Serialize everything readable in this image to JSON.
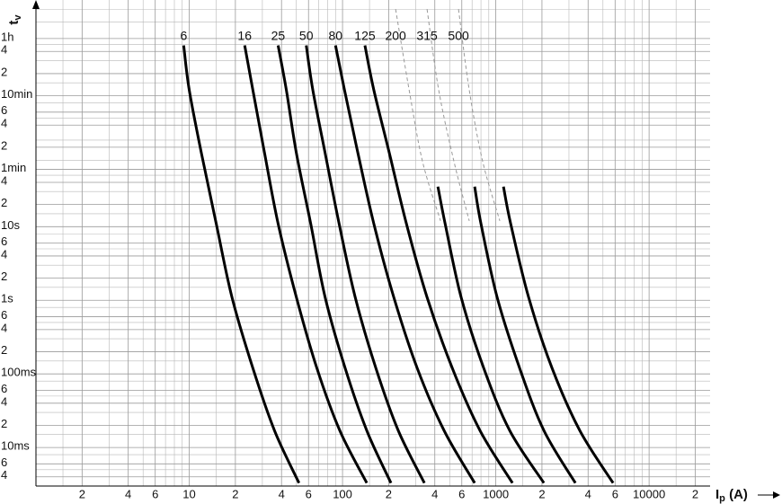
{
  "chart_data": {
    "type": "line",
    "xscale": "log",
    "yscale": "log",
    "grid": true,
    "xlabel": {
      "main": "I",
      "sub": "p",
      "rest": " (A)"
    },
    "ylabel": {
      "main": "t",
      "sub": "v"
    },
    "xlim": [
      1,
      25000
    ],
    "ylim": [
      0.003,
      12000
    ],
    "xticks": [
      2,
      4,
      6,
      10,
      {
        "value": 20,
        "label": "2"
      },
      {
        "value": 40,
        "label": "4"
      },
      {
        "value": 60,
        "label": "6"
      },
      100,
      {
        "value": 200,
        "label": "2"
      },
      {
        "value": 400,
        "label": "4"
      },
      {
        "value": 600,
        "label": "6"
      },
      1000,
      {
        "value": 2000,
        "label": "2"
      },
      {
        "value": 4000,
        "label": "4"
      },
      {
        "value": 6000,
        "label": "6"
      },
      10000,
      {
        "value": 20000,
        "label": "2"
      }
    ],
    "yticks": [
      {
        "value": 3600,
        "label": "1h"
      },
      {
        "value": 2400,
        "label": "4"
      },
      {
        "value": 1200,
        "label": "2"
      },
      {
        "value": 600,
        "label": "10min"
      },
      {
        "value": 360,
        "label": "6"
      },
      {
        "value": 240,
        "label": "4"
      },
      {
        "value": 120,
        "label": "2"
      },
      {
        "value": 60,
        "label": "1min"
      },
      {
        "value": 40,
        "label": "4"
      },
      {
        "value": 20,
        "label": "2"
      },
      {
        "value": 10,
        "label": "10s"
      },
      6,
      4,
      2,
      {
        "value": 1,
        "label": "1s"
      },
      {
        "value": 0.6,
        "label": "6"
      },
      {
        "value": 0.4,
        "label": "4"
      },
      {
        "value": 0.2,
        "label": "2"
      },
      {
        "value": 0.1,
        "label": "100ms"
      },
      {
        "value": 0.06,
        "label": "6"
      },
      {
        "value": 0.04,
        "label": "4"
      },
      {
        "value": 0.02,
        "label": "2"
      },
      {
        "value": 0.01,
        "label": "10ms"
      },
      {
        "value": 0.006,
        "label": "6"
      },
      {
        "value": 0.004,
        "label": "4"
      }
    ],
    "xminor": [
      1.5,
      3,
      5,
      7,
      8,
      9,
      15,
      30,
      50,
      70,
      80,
      90,
      150,
      300,
      500,
      700,
      800,
      900,
      1500,
      3000,
      5000,
      7000,
      8000,
      9000,
      15000
    ],
    "yminor": [
      0.005,
      0.008,
      0.015,
      0.03,
      0.05,
      0.08,
      0.15,
      0.3,
      0.5,
      0.8,
      1.5,
      3,
      5,
      8,
      15,
      30,
      50,
      80,
      150,
      300,
      480,
      900,
      1800,
      3000,
      6000,
      9000
    ],
    "series": [
      {
        "name": "6",
        "color": "#000000",
        "x": [
          9.2,
          10,
          12,
          15,
          19,
          26,
          36,
          52
        ],
        "values": [
          2900,
          720,
          100,
          11,
          1.1,
          0.12,
          0.017,
          0.0033
        ]
      },
      {
        "name": "16",
        "color": "#000000",
        "x": [
          23,
          26,
          31,
          38,
          50,
          68,
          96,
          144
        ],
        "values": [
          2900,
          720,
          100,
          11,
          1.1,
          0.12,
          0.017,
          0.0033
        ]
      },
      {
        "name": "25",
        "color": "#000000",
        "x": [
          38,
          43,
          50,
          62,
          77,
          104,
          144,
          207
        ],
        "values": [
          2900,
          720,
          100,
          11,
          1.1,
          0.12,
          0.017,
          0.0033
        ]
      },
      {
        "name": "50",
        "color": "#000000",
        "x": [
          58,
          64,
          77,
          95,
          121,
          165,
          231,
          342
        ],
        "values": [
          2900,
          720,
          100,
          11,
          1.1,
          0.12,
          0.017,
          0.0033
        ]
      },
      {
        "name": "80",
        "color": "#000000",
        "x": [
          90,
          103,
          126,
          160,
          216,
          307,
          460,
          728
        ],
        "values": [
          2900,
          720,
          100,
          11,
          1.1,
          0.12,
          0.017,
          0.0033
        ]
      },
      {
        "name": "125",
        "color": "#000000",
        "x": [
          140,
          160,
          202,
          261,
          356,
          520,
          789,
          1284
        ],
        "values": [
          2900,
          720,
          100,
          11,
          1.1,
          0.12,
          0.017,
          0.0033
        ]
      },
      {
        "name": "200",
        "color": "#000000",
        "x": [
          419,
          467,
          594,
          834,
          1233,
          2060
        ],
        "values": [
          35,
          11,
          1.1,
          0.12,
          0.017,
          0.0033
        ],
        "extension": {
          "color": "#999999",
          "style": "dashed",
          "x": [
            222,
            272,
            333,
            436
          ],
          "values": [
            9000,
            720,
            76,
            12
          ]
        }
      },
      {
        "name": "315",
        "color": "#000000",
        "x": [
          728,
          800,
          1020,
          1430,
          2060,
          3304
        ],
        "values": [
          35,
          11,
          1.1,
          0.12,
          0.017,
          0.0033
        ],
        "extension": {
          "color": "#999999",
          "style": "dashed",
          "x": [
            356,
            424,
            534,
            671
          ],
          "values": [
            9000,
            720,
            76,
            12
          ]
        }
      },
      {
        "name": "500",
        "color": "#000000",
        "x": [
          1122,
          1250,
          1637,
          2327,
          3533,
          5823
        ],
        "values": [
          35,
          11,
          1.1,
          0.12,
          0.017,
          0.0033
        ],
        "extension": {
          "color": "#999999",
          "style": "dashed",
          "x": [
            571,
            671,
            822,
            1062
          ],
          "values": [
            9000,
            720,
            76,
            12
          ]
        }
      }
    ]
  }
}
